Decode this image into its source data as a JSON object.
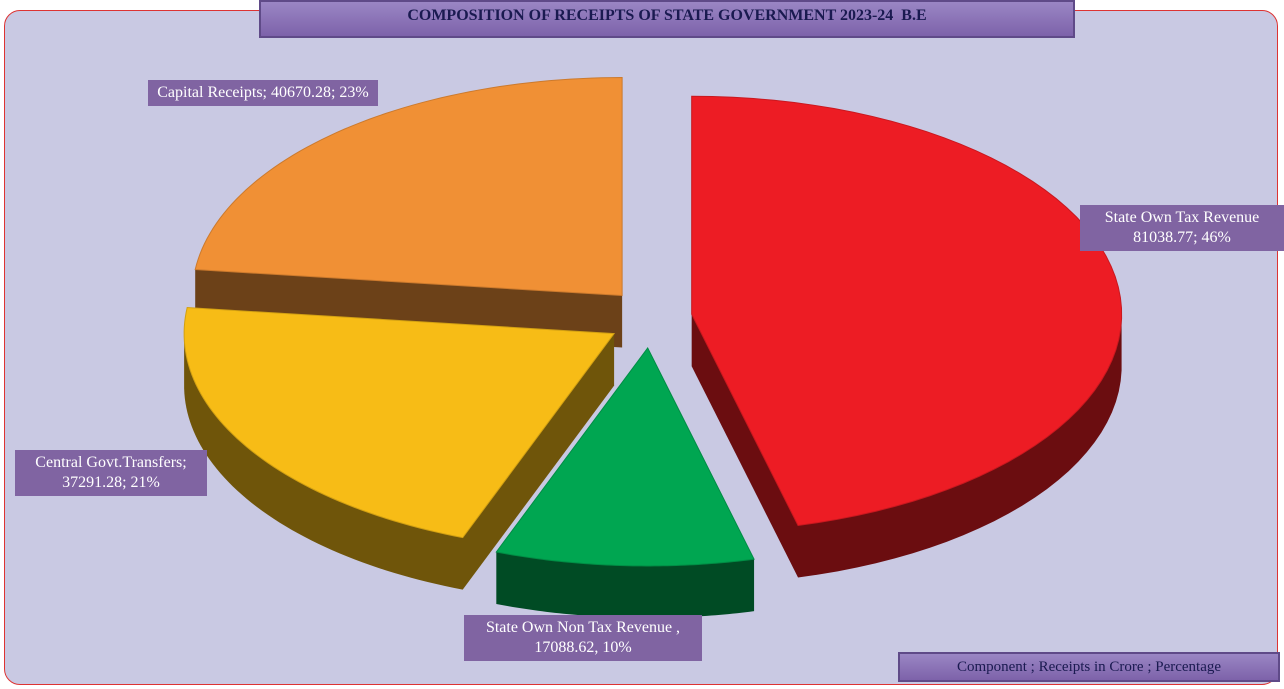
{
  "chart_data": {
    "type": "pie",
    "title": "COMPOSITION OF RECEIPTS OF STATE GOVERNMENT 2023-24  B.E",
    "values": [
      81038.77,
      17088.62,
      37291.28,
      40670.28
    ],
    "value_labels": [
      "State Own Tax Revenue 81038.77; 46%",
      "State Own Non Tax Revenue , 17088.62, 10%",
      "Central Govt.Transfers; 37291.28; 21%",
      "Capital Receipts; 40670.28; 23%"
    ],
    "colors": [
      "#ed1c24",
      "#00a651",
      "#f7bc16",
      "#f09035"
    ],
    "note": "Component ; Receipts in Crore ; Percentage"
  }
}
